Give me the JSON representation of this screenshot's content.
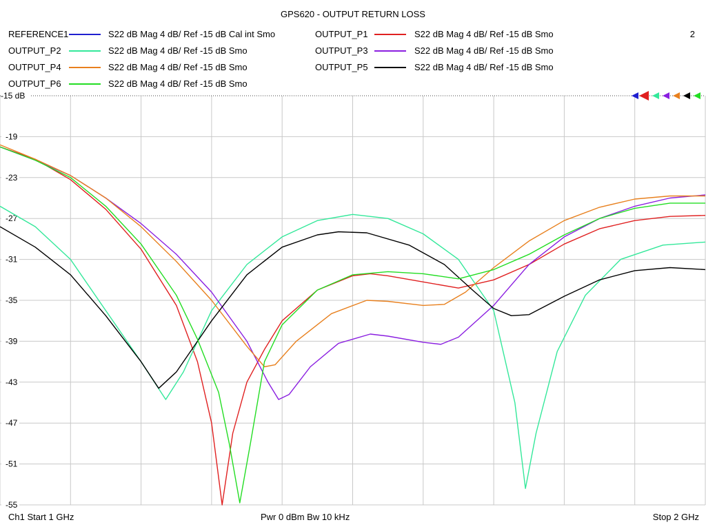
{
  "chart_data": {
    "type": "line",
    "title": "GPS620 - OUTPUT RETURN LOSS",
    "trace_number": "2",
    "x_range": [
      1,
      2
    ],
    "x_unit": "GHz",
    "ylim": [
      -55,
      -15
    ],
    "y_ticks": [
      "-15 dB",
      "-19",
      "-23",
      "-27",
      "-31",
      "-35",
      "-39",
      "-43",
      "-47",
      "-51",
      "-55"
    ],
    "grid": true,
    "footer": {
      "left": "Ch1  Start  1 GHz",
      "center": "Pwr  0 dBm  Bw  10 kHz",
      "right": "Stop  2 GHz"
    },
    "series": [
      {
        "name": "REFERENCE1",
        "desc": "S22  dB Mag  4 dB/ Ref -15 dB  Cal int Smo",
        "color": "#1f1fd0",
        "points": []
      },
      {
        "name": "OUTPUT_P1",
        "desc": "S22  dB Mag  4 dB/ Ref -15 dB  Smo",
        "color": "#e02020",
        "points": [
          [
            1.0,
            -20.0
          ],
          [
            1.05,
            -21.2
          ],
          [
            1.1,
            -23.2
          ],
          [
            1.15,
            -26.1
          ],
          [
            1.2,
            -30.0
          ],
          [
            1.25,
            -35.5
          ],
          [
            1.28,
            -41.0
          ],
          [
            1.3,
            -47.0
          ],
          [
            1.315,
            -55.0
          ],
          [
            1.33,
            -48.0
          ],
          [
            1.35,
            -43.0
          ],
          [
            1.375,
            -39.8
          ],
          [
            1.4,
            -37.0
          ],
          [
            1.45,
            -34.0
          ],
          [
            1.5,
            -32.6
          ],
          [
            1.525,
            -32.4
          ],
          [
            1.55,
            -32.6
          ],
          [
            1.6,
            -33.2
          ],
          [
            1.65,
            -33.8
          ],
          [
            1.7,
            -33.0
          ],
          [
            1.75,
            -31.5
          ],
          [
            1.8,
            -29.5
          ],
          [
            1.85,
            -28.0
          ],
          [
            1.9,
            -27.2
          ],
          [
            1.95,
            -26.8
          ],
          [
            2.0,
            -26.7
          ]
        ]
      },
      {
        "name": "OUTPUT_P2",
        "desc": "S22  dB Mag  4 dB/ Ref -15 dB  Smo",
        "color": "#33e89a",
        "points": [
          [
            1.0,
            -25.8
          ],
          [
            1.05,
            -27.8
          ],
          [
            1.1,
            -31.0
          ],
          [
            1.15,
            -36.0
          ],
          [
            1.2,
            -41.0
          ],
          [
            1.235,
            -44.7
          ],
          [
            1.26,
            -42.0
          ],
          [
            1.3,
            -36.0
          ],
          [
            1.35,
            -31.5
          ],
          [
            1.4,
            -28.8
          ],
          [
            1.45,
            -27.2
          ],
          [
            1.5,
            -26.6
          ],
          [
            1.55,
            -27.0
          ],
          [
            1.6,
            -28.5
          ],
          [
            1.65,
            -31.0
          ],
          [
            1.7,
            -36.0
          ],
          [
            1.73,
            -45.0
          ],
          [
            1.745,
            -53.4
          ],
          [
            1.76,
            -48.0
          ],
          [
            1.79,
            -40.0
          ],
          [
            1.83,
            -34.5
          ],
          [
            1.88,
            -31.0
          ],
          [
            1.94,
            -29.6
          ],
          [
            2.0,
            -29.3
          ]
        ]
      },
      {
        "name": "OUTPUT_P3",
        "desc": "S22  dB Mag  4 dB/ Ref -15 dB  Smo",
        "color": "#8a1ee0",
        "points": [
          [
            1.0,
            -20.0
          ],
          [
            1.05,
            -21.3
          ],
          [
            1.1,
            -22.8
          ],
          [
            1.15,
            -25.0
          ],
          [
            1.2,
            -27.5
          ],
          [
            1.25,
            -30.5
          ],
          [
            1.3,
            -34.2
          ],
          [
            1.35,
            -39.0
          ],
          [
            1.38,
            -43.0
          ],
          [
            1.395,
            -44.7
          ],
          [
            1.41,
            -44.2
          ],
          [
            1.44,
            -41.5
          ],
          [
            1.48,
            -39.2
          ],
          [
            1.525,
            -38.3
          ],
          [
            1.55,
            -38.5
          ],
          [
            1.6,
            -39.1
          ],
          [
            1.625,
            -39.3
          ],
          [
            1.65,
            -38.6
          ],
          [
            1.7,
            -35.5
          ],
          [
            1.75,
            -31.5
          ],
          [
            1.8,
            -28.8
          ],
          [
            1.85,
            -27.0
          ],
          [
            1.9,
            -25.8
          ],
          [
            1.95,
            -25.0
          ],
          [
            2.0,
            -24.7
          ]
        ]
      },
      {
        "name": "OUTPUT_P4",
        "desc": "S22  dB Mag  4 dB/ Ref -15 dB  Smo",
        "color": "#e8801e",
        "points": [
          [
            1.0,
            -19.8
          ],
          [
            1.05,
            -21.2
          ],
          [
            1.1,
            -22.8
          ],
          [
            1.15,
            -25.0
          ],
          [
            1.2,
            -27.8
          ],
          [
            1.25,
            -31.2
          ],
          [
            1.3,
            -35.0
          ],
          [
            1.35,
            -39.5
          ],
          [
            1.375,
            -41.5
          ],
          [
            1.39,
            -41.3
          ],
          [
            1.42,
            -39.0
          ],
          [
            1.47,
            -36.3
          ],
          [
            1.52,
            -35.0
          ],
          [
            1.55,
            -35.1
          ],
          [
            1.6,
            -35.5
          ],
          [
            1.63,
            -35.4
          ],
          [
            1.66,
            -34.2
          ],
          [
            1.7,
            -31.8
          ],
          [
            1.75,
            -29.2
          ],
          [
            1.8,
            -27.2
          ],
          [
            1.85,
            -25.9
          ],
          [
            1.9,
            -25.1
          ],
          [
            1.95,
            -24.8
          ],
          [
            2.0,
            -24.8
          ]
        ]
      },
      {
        "name": "OUTPUT_P5",
        "desc": "S22  dB Mag  4 dB/ Ref -15 dB  Smo",
        "color": "#000000",
        "points": [
          [
            1.0,
            -27.8
          ],
          [
            1.05,
            -29.8
          ],
          [
            1.1,
            -32.5
          ],
          [
            1.15,
            -36.5
          ],
          [
            1.2,
            -41.0
          ],
          [
            1.225,
            -43.6
          ],
          [
            1.25,
            -42.0
          ],
          [
            1.3,
            -37.0
          ],
          [
            1.35,
            -32.5
          ],
          [
            1.4,
            -29.8
          ],
          [
            1.45,
            -28.6
          ],
          [
            1.48,
            -28.3
          ],
          [
            1.52,
            -28.4
          ],
          [
            1.58,
            -29.6
          ],
          [
            1.63,
            -31.5
          ],
          [
            1.67,
            -34.0
          ],
          [
            1.7,
            -35.8
          ],
          [
            1.725,
            -36.5
          ],
          [
            1.75,
            -36.4
          ],
          [
            1.8,
            -34.6
          ],
          [
            1.85,
            -33.0
          ],
          [
            1.9,
            -32.1
          ],
          [
            1.95,
            -31.8
          ],
          [
            2.0,
            -32.0
          ]
        ]
      },
      {
        "name": "OUTPUT_P6",
        "desc": "S22  dB Mag  4 dB/ Ref -15 dB  Smo",
        "color": "#22dd22",
        "points": [
          [
            1.0,
            -20.0
          ],
          [
            1.05,
            -21.3
          ],
          [
            1.1,
            -23.0
          ],
          [
            1.15,
            -25.8
          ],
          [
            1.2,
            -29.5
          ],
          [
            1.25,
            -34.5
          ],
          [
            1.28,
            -38.8
          ],
          [
            1.31,
            -44.0
          ],
          [
            1.325,
            -49.0
          ],
          [
            1.34,
            -54.8
          ],
          [
            1.355,
            -49.0
          ],
          [
            1.375,
            -41.0
          ],
          [
            1.4,
            -37.4
          ],
          [
            1.45,
            -34.0
          ],
          [
            1.5,
            -32.5
          ],
          [
            1.55,
            -32.2
          ],
          [
            1.6,
            -32.4
          ],
          [
            1.65,
            -32.9
          ],
          [
            1.7,
            -32.0
          ],
          [
            1.75,
            -30.5
          ],
          [
            1.8,
            -28.6
          ],
          [
            1.85,
            -27.0
          ],
          [
            1.9,
            -26.0
          ],
          [
            1.95,
            -25.5
          ],
          [
            2.0,
            -25.5
          ]
        ]
      }
    ]
  }
}
